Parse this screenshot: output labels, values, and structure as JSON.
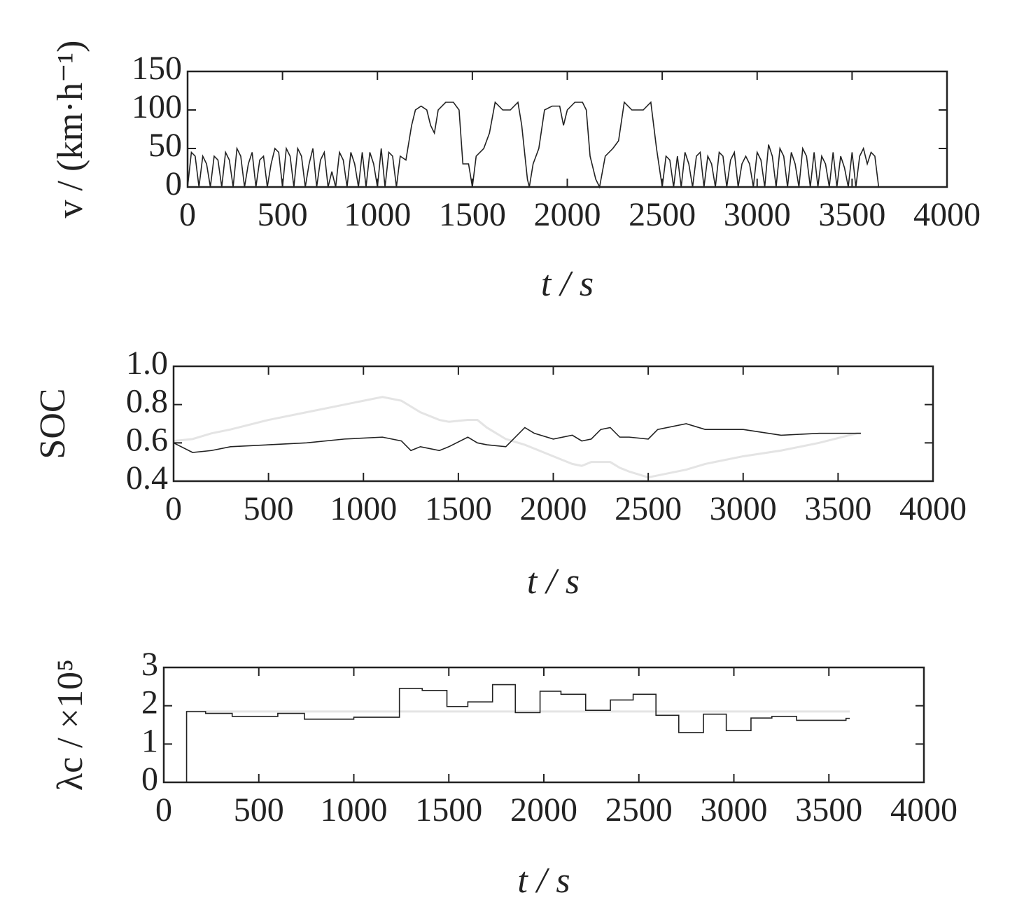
{
  "chart_data": [
    {
      "type": "line",
      "xlabel": "t / s",
      "ylabel": "v / (km·h⁻¹)",
      "xlim": [
        0,
        4000
      ],
      "xticks": [
        0,
        500,
        1000,
        1500,
        2000,
        2500,
        3000,
        3500,
        4000
      ],
      "ylim": [
        0,
        150
      ],
      "yticks": [
        0,
        50,
        100,
        150
      ],
      "x": [
        0,
        20,
        40,
        60,
        80,
        100,
        120,
        140,
        160,
        180,
        200,
        220,
        240,
        260,
        280,
        300,
        320,
        340,
        360,
        380,
        400,
        420,
        440,
        460,
        480,
        500,
        520,
        540,
        560,
        580,
        600,
        620,
        640,
        660,
        680,
        700,
        720,
        740,
        760,
        780,
        800,
        820,
        840,
        860,
        880,
        900,
        920,
        940,
        960,
        980,
        1000,
        1020,
        1040,
        1060,
        1080,
        1100,
        1120,
        1150,
        1180,
        1200,
        1230,
        1260,
        1280,
        1300,
        1320,
        1360,
        1400,
        1430,
        1450,
        1480,
        1500,
        1520,
        1560,
        1590,
        1620,
        1660,
        1700,
        1740,
        1760,
        1790,
        1800,
        1820,
        1850,
        1880,
        1920,
        1960,
        1980,
        2000,
        2040,
        2080,
        2100,
        2120,
        2150,
        2170,
        2200,
        2240,
        2270,
        2300,
        2340,
        2400,
        2440,
        2470,
        2500,
        2520,
        2540,
        2560,
        2580,
        2600,
        2620,
        2640,
        2660,
        2680,
        2700,
        2720,
        2740,
        2760,
        2780,
        2800,
        2820,
        2840,
        2860,
        2880,
        2900,
        2920,
        2940,
        2960,
        2980,
        3000,
        3020,
        3040,
        3060,
        3080,
        3100,
        3120,
        3140,
        3160,
        3180,
        3200,
        3220,
        3240,
        3260,
        3280,
        3300,
        3320,
        3340,
        3360,
        3380,
        3400,
        3420,
        3440,
        3460,
        3480,
        3500,
        3520,
        3540,
        3560,
        3580,
        3600,
        3620,
        3640
      ],
      "series": [
        {
          "color": "#222222",
          "values": [
            0,
            45,
            40,
            0,
            40,
            30,
            0,
            40,
            35,
            0,
            45,
            35,
            0,
            50,
            40,
            0,
            30,
            45,
            0,
            35,
            40,
            0,
            30,
            50,
            45,
            0,
            50,
            40,
            0,
            50,
            40,
            0,
            30,
            50,
            0,
            35,
            45,
            0,
            20,
            0,
            45,
            35,
            0,
            45,
            30,
            0,
            45,
            0,
            45,
            30,
            0,
            50,
            0,
            45,
            40,
            0,
            40,
            35,
            80,
            100,
            105,
            100,
            80,
            70,
            100,
            110,
            110,
            100,
            30,
            30,
            0,
            40,
            50,
            70,
            110,
            100,
            100,
            110,
            80,
            10,
            0,
            30,
            50,
            100,
            105,
            105,
            80,
            100,
            110,
            110,
            100,
            40,
            10,
            0,
            40,
            50,
            60,
            110,
            100,
            100,
            110,
            50,
            0,
            40,
            35,
            0,
            40,
            0,
            45,
            30,
            0,
            40,
            45,
            0,
            40,
            30,
            0,
            45,
            40,
            0,
            35,
            45,
            0,
            30,
            40,
            30,
            0,
            45,
            35,
            0,
            55,
            40,
            0,
            50,
            40,
            0,
            45,
            30,
            0,
            50,
            40,
            0,
            45,
            0,
            40,
            30,
            0,
            45,
            0,
            40,
            25,
            0,
            45,
            0,
            40,
            50,
            30,
            45,
            40,
            0
          ]
        }
      ]
    },
    {
      "type": "line",
      "xlabel": "t / s",
      "ylabel": "SOC",
      "xlim": [
        0,
        4000
      ],
      "xticks": [
        0,
        500,
        1000,
        1500,
        2000,
        2500,
        3000,
        3500,
        4000
      ],
      "ylim": [
        0.4,
        1
      ],
      "yticks": [
        0.4,
        0.6,
        0.8,
        {
          "value": 1,
          "label": "1.0"
        }
      ],
      "x": [
        0,
        100,
        200,
        300,
        500,
        700,
        900,
        1100,
        1200,
        1250,
        1300,
        1400,
        1450,
        1550,
        1600,
        1650,
        1750,
        1850,
        1900,
        2000,
        2100,
        2150,
        2200,
        2250,
        2300,
        2350,
        2400,
        2500,
        2550,
        2700,
        2800,
        3000,
        3200,
        3400,
        3600,
        3620
      ],
      "series": [
        {
          "color": "#e4e4e4",
          "values": [
            0.61,
            0.62,
            0.65,
            0.67,
            0.72,
            0.76,
            0.8,
            0.84,
            0.82,
            0.79,
            0.76,
            0.72,
            0.71,
            0.72,
            0.72,
            0.68,
            0.62,
            0.59,
            0.57,
            0.53,
            0.49,
            0.48,
            0.5,
            0.5,
            0.5,
            0.47,
            0.45,
            0.42,
            0.43,
            0.46,
            0.49,
            0.53,
            0.56,
            0.6,
            0.65,
            0.65
          ]
        },
        {
          "color": "#222222",
          "values": [
            0.6,
            0.55,
            0.56,
            0.58,
            0.59,
            0.6,
            0.62,
            0.63,
            0.61,
            0.56,
            0.58,
            0.56,
            0.58,
            0.63,
            0.6,
            0.59,
            0.58,
            0.68,
            0.65,
            0.62,
            0.64,
            0.61,
            0.62,
            0.67,
            0.68,
            0.63,
            0.63,
            0.62,
            0.67,
            0.7,
            0.67,
            0.67,
            0.64,
            0.65,
            0.65,
            0.65
          ]
        }
      ]
    },
    {
      "type": "step",
      "xlabel": "t / s",
      "ylabel": "λc / ×10⁵",
      "xlim": [
        0,
        4000
      ],
      "xticks": [
        0,
        500,
        1000,
        1500,
        2000,
        2500,
        3000,
        3500,
        4000
      ],
      "ylim": [
        0,
        3
      ],
      "yticks": [
        0,
        1,
        2,
        3
      ],
      "series": [
        {
          "color": "#e4e4e4",
          "x": [
            120,
            3610
          ],
          "values": [
            1.85,
            1.85
          ]
        },
        {
          "color": "#222222",
          "x": [
            115,
            120,
            220,
            360,
            600,
            740,
            1000,
            1240,
            1360,
            1490,
            1600,
            1730,
            1850,
            1980,
            2090,
            2220,
            2350,
            2470,
            2590,
            2710,
            2840,
            2960,
            3090,
            3200,
            3330,
            3590,
            3610
          ],
          "values": [
            0,
            1.85,
            1.8,
            1.72,
            1.8,
            1.65,
            1.7,
            2.45,
            2.4,
            1.98,
            2.1,
            2.55,
            1.82,
            2.38,
            2.3,
            1.88,
            2.15,
            2.3,
            1.75,
            1.3,
            1.78,
            1.35,
            1.68,
            1.72,
            1.62,
            1.67,
            1.67
          ]
        }
      ]
    }
  ]
}
